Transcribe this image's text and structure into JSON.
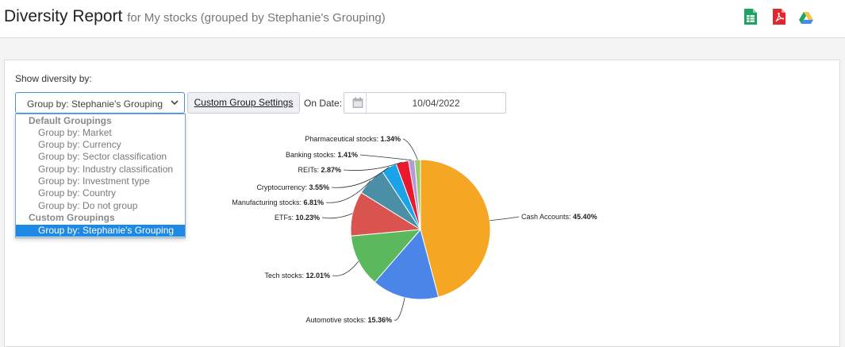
{
  "header": {
    "title": "Diversity Report",
    "subtitle": "for My stocks (grouped by Stephanie's Grouping)",
    "export_icons": [
      "spreadsheet-icon",
      "pdf-icon",
      "google-drive-icon"
    ]
  },
  "controls": {
    "show_label": "Show diversity by:",
    "group_select_value": "Group by: Stephanie's Grouping",
    "custom_settings_label": "Custom Group Settings",
    "on_date_label": "On Date:",
    "date_value": "10/04/2022"
  },
  "dropdown": {
    "default_heading": "Default Groupings",
    "default_items": [
      "Group by: Market",
      "Group by: Currency",
      "Group by: Sector classification",
      "Group by: Industry classification",
      "Group by: Investment type",
      "Group by: Country",
      "Group by: Do not group"
    ],
    "custom_heading": "Custom Groupings",
    "custom_items": [
      "Group by: Stephanie's Grouping"
    ]
  },
  "chart_data": {
    "type": "pie",
    "unit": "%",
    "slices": [
      {
        "label": "Cash Accounts",
        "value": 45.4,
        "color": "#f5a623"
      },
      {
        "label": "Automotive stocks",
        "value": 15.36,
        "color": "#4a86e8"
      },
      {
        "label": "Tech stocks",
        "value": 12.01,
        "color": "#5cb85c"
      },
      {
        "label": "ETFs",
        "value": 10.23,
        "color": "#d9534f"
      },
      {
        "label": "Manufacturing stocks",
        "value": 6.81,
        "color": "#4a8fa5"
      },
      {
        "label": "Cryptocurrency",
        "value": 3.55,
        "color": "#1aa3e8"
      },
      {
        "label": "REITs",
        "value": 2.87,
        "color": "#e8192c"
      },
      {
        "label": "Banking stocks",
        "value": 1.41,
        "color": "#b59ad6"
      },
      {
        "label": "Pharmaceutical stocks",
        "value": 1.34,
        "color": "#9acd6a"
      }
    ]
  }
}
